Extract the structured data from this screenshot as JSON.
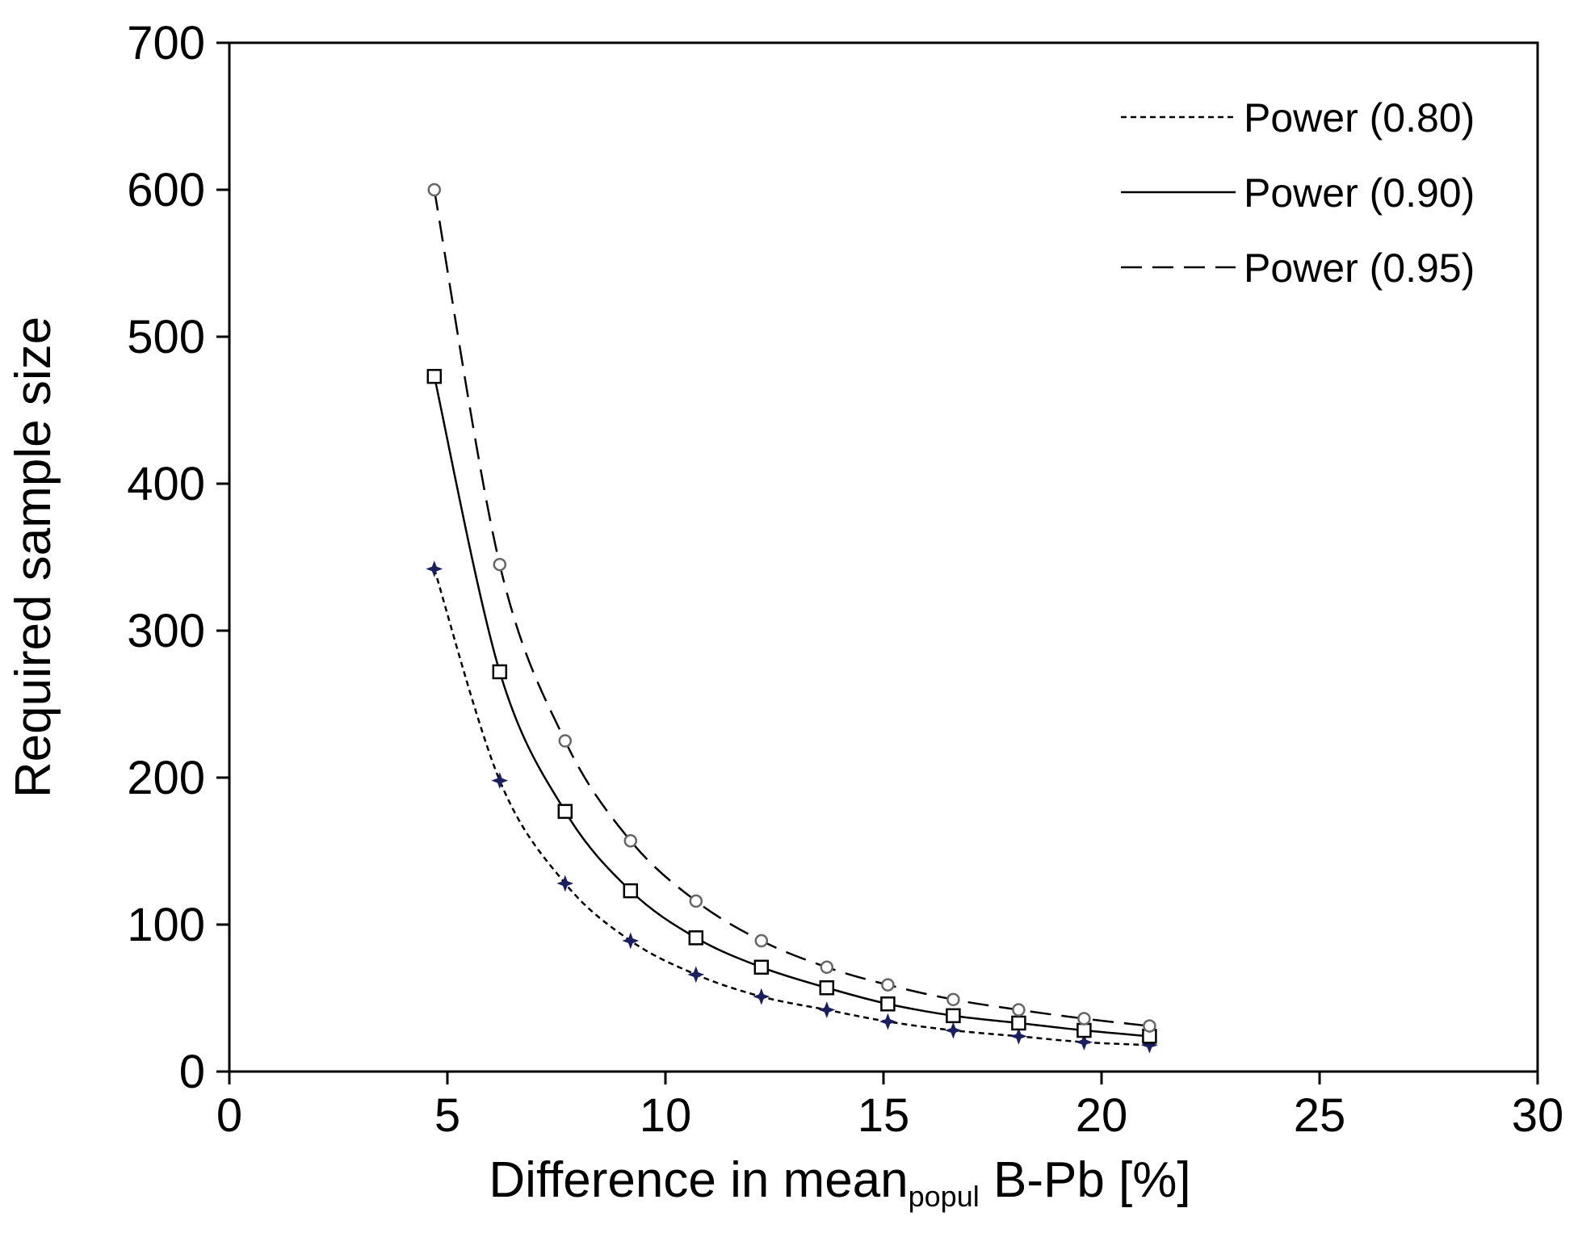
{
  "chart_data": {
    "type": "line",
    "title": "",
    "xlabel": {
      "main": "Difference in mean",
      "sub": "popul",
      "suffix": " B-Pb [%]"
    },
    "ylabel": "Required sample size",
    "xlim": [
      0,
      30
    ],
    "ylim": [
      0,
      700
    ],
    "xticks": [
      0,
      5,
      10,
      15,
      20,
      25,
      30
    ],
    "yticks": [
      0,
      100,
      200,
      300,
      400,
      500,
      600,
      700
    ],
    "grid": false,
    "legend_position": "top-right",
    "x": [
      4.7,
      6.2,
      7.7,
      9.2,
      10.7,
      12.2,
      13.7,
      15.1,
      16.6,
      18.1,
      19.6,
      21.1
    ],
    "series": [
      {
        "name": "Power (0.80)",
        "line_style": "dotted",
        "marker": "star",
        "marker_color": "#1a1f5e",
        "values": [
          342,
          198,
          128,
          89,
          66,
          51,
          42,
          34,
          28,
          24,
          20,
          18
        ]
      },
      {
        "name": "Power (0.90)",
        "line_style": "solid",
        "marker": "square",
        "marker_color": "#000000",
        "values": [
          473,
          272,
          177,
          123,
          91,
          71,
          57,
          46,
          38,
          33,
          28,
          24
        ]
      },
      {
        "name": "Power (0.95)",
        "line_style": "dashed",
        "marker": "circle",
        "marker_color": "#666666",
        "values": [
          600,
          345,
          225,
          157,
          116,
          89,
          71,
          59,
          49,
          42,
          36,
          31
        ]
      }
    ]
  }
}
